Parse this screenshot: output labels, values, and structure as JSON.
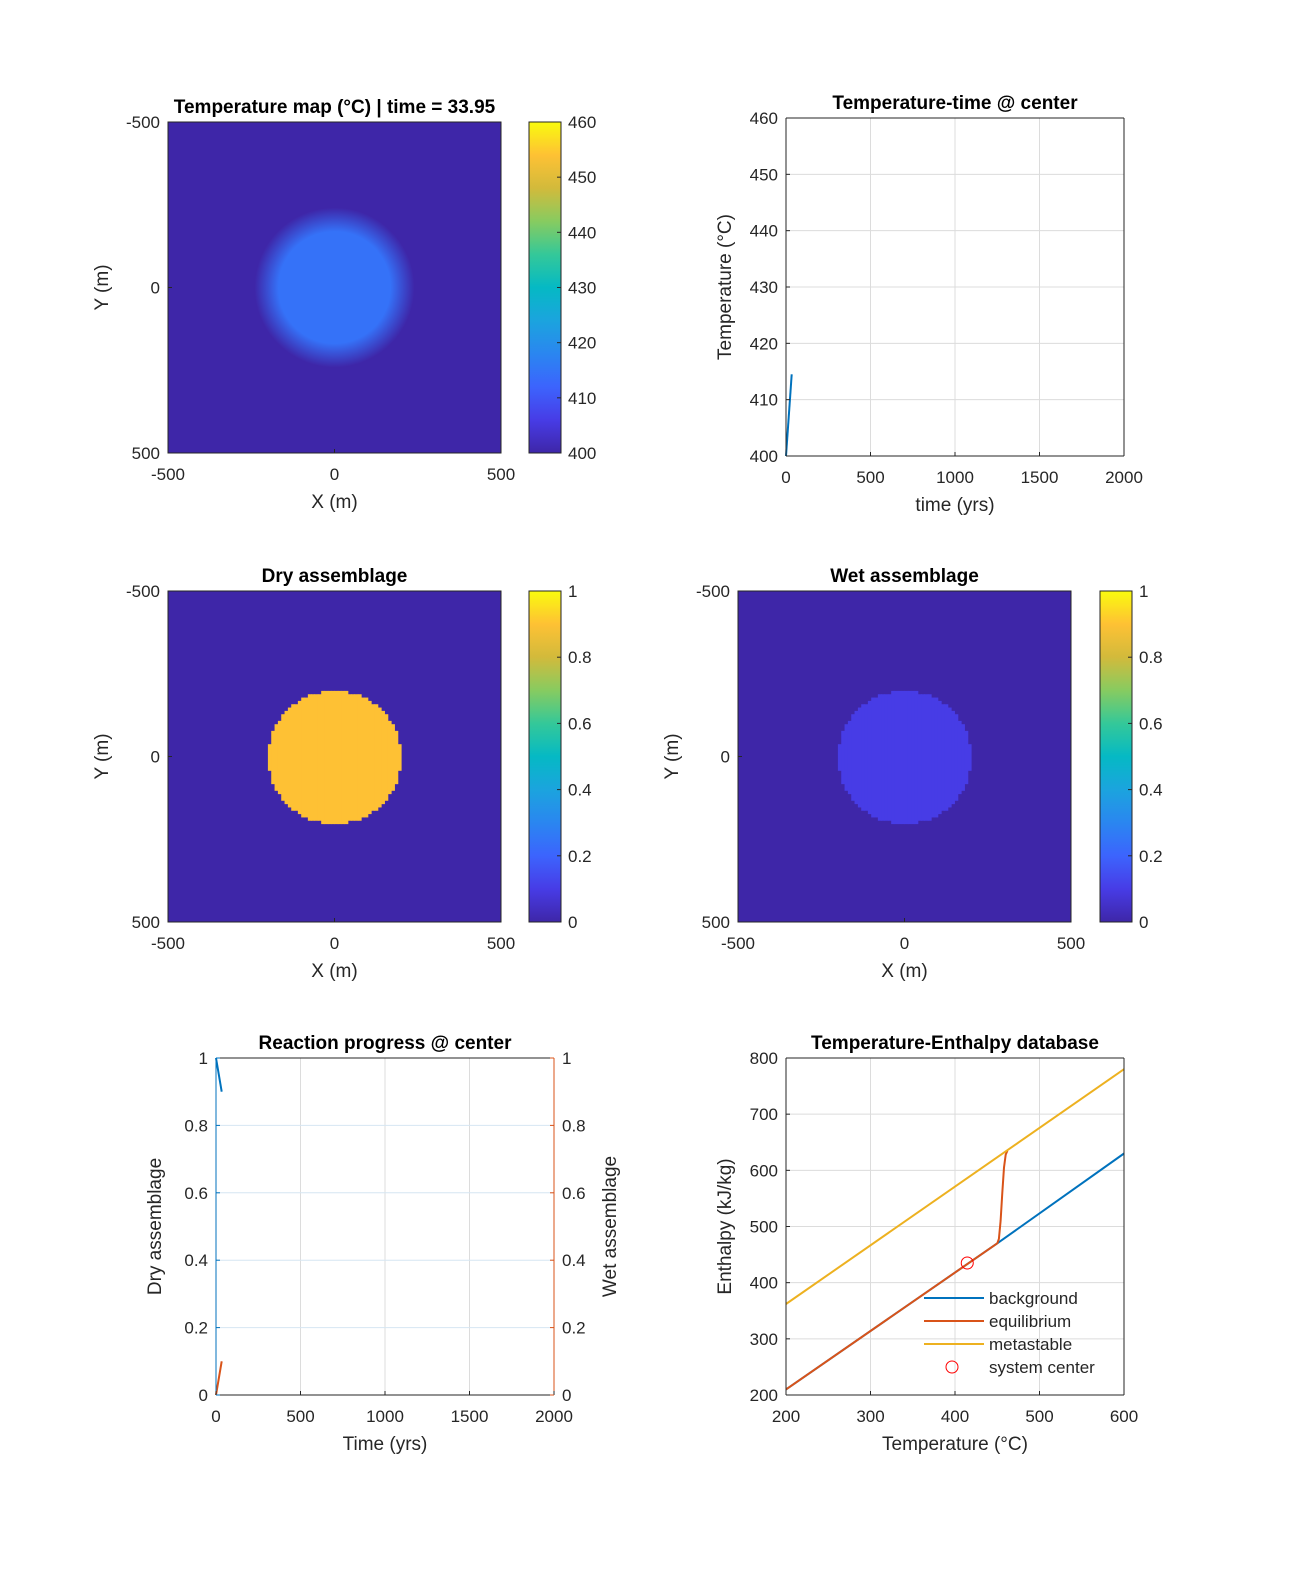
{
  "chart_data": [
    {
      "id": "temp_map",
      "type": "heatmap",
      "title": "Temperature map (°C) | time = 33.95",
      "xlabel": "X (m)",
      "ylabel": "Y (m)",
      "xlim": [
        -500,
        500
      ],
      "ylim": [
        -500,
        500
      ],
      "y_reversed": true,
      "xticks": [
        "-500",
        "0",
        "500"
      ],
      "yticks": [
        "-500",
        "0",
        "500"
      ],
      "colorbar": {
        "clim": [
          400,
          460
        ],
        "ticks": [
          "400",
          "410",
          "420",
          "430",
          "440",
          "450",
          "460"
        ],
        "colormap": "parula"
      },
      "field": {
        "background": 400,
        "center_value": 414.5,
        "radius_m": 200,
        "edge": "smooth"
      }
    },
    {
      "id": "temp_time",
      "type": "line",
      "title": "Temperature-time @ center",
      "xlabel": "time (yrs)",
      "ylabel": "Temperature (°C)",
      "xlim": [
        0,
        2000
      ],
      "ylim": [
        400,
        460
      ],
      "xticks": [
        "0",
        "500",
        "1000",
        "1500",
        "2000"
      ],
      "yticks": [
        "400",
        "410",
        "420",
        "430",
        "440",
        "450",
        "460"
      ],
      "grid": true,
      "series": [
        {
          "name": "center temperature",
          "color": "#0072bd",
          "x": [
            0,
            33.95
          ],
          "y": [
            400,
            414.5
          ]
        }
      ]
    },
    {
      "id": "dry_map",
      "type": "heatmap",
      "title": "Dry assemblage",
      "xlabel": "X (m)",
      "ylabel": "Y (m)",
      "xlim": [
        -500,
        500
      ],
      "ylim": [
        -500,
        500
      ],
      "y_reversed": true,
      "xticks": [
        "-500",
        "0",
        "500"
      ],
      "yticks": [
        "-500",
        "0",
        "500"
      ],
      "colorbar": {
        "clim": [
          0,
          1
        ],
        "ticks": [
          "0",
          "0.2",
          "0.4",
          "0.6",
          "0.8",
          "1"
        ],
        "colormap": "parula"
      },
      "field": {
        "background": 0,
        "center_value": 0.9,
        "radius_m": 200,
        "edge": "pixelated"
      }
    },
    {
      "id": "wet_map",
      "type": "heatmap",
      "title": "Wet assemblage",
      "xlabel": "X (m)",
      "ylabel": "Y (m)",
      "xlim": [
        -500,
        500
      ],
      "ylim": [
        -500,
        500
      ],
      "y_reversed": true,
      "xticks": [
        "-500",
        "0",
        "500"
      ],
      "yticks": [
        "-500",
        "0",
        "500"
      ],
      "colorbar": {
        "clim": [
          0,
          1
        ],
        "ticks": [
          "0",
          "0.2",
          "0.4",
          "0.6",
          "0.8",
          "1"
        ],
        "colormap": "parula"
      },
      "field": {
        "background": 0,
        "center_value": 0.1,
        "radius_m": 200,
        "edge": "pixelated"
      }
    },
    {
      "id": "reaction",
      "type": "line",
      "title": "Reaction progress @ center",
      "xlabel": "Time (yrs)",
      "ylabel": "Dry assemblage",
      "ylabel_right": "Wet assemblage",
      "xlim": [
        0,
        2000
      ],
      "ylim": [
        0,
        1
      ],
      "ylim_right": [
        0,
        1
      ],
      "xticks": [
        "0",
        "500",
        "1000",
        "1500",
        "2000"
      ],
      "yticks": [
        "0",
        "0.2",
        "0.4",
        "0.6",
        "0.8",
        "1"
      ],
      "grid": true,
      "left_color": "#0072bd",
      "right_color": "#d95319",
      "series": [
        {
          "name": "Dry assemblage",
          "axis": "left",
          "color": "#0072bd",
          "x": [
            0,
            33.95
          ],
          "y": [
            1,
            0.9
          ]
        },
        {
          "name": "Wet assemblage",
          "axis": "right",
          "color": "#d95319",
          "x": [
            0,
            33.95
          ],
          "y": [
            0,
            0.1
          ]
        }
      ]
    },
    {
      "id": "enthalpy",
      "type": "line",
      "title": "Temperature-Enthalpy database",
      "xlabel": "Temperature (°C)",
      "ylabel": "Enthalpy (kJ/kg)",
      "xlim": [
        200,
        600
      ],
      "ylim": [
        200,
        800
      ],
      "xticks": [
        "200",
        "300",
        "400",
        "500",
        "600"
      ],
      "yticks": [
        "200",
        "300",
        "400",
        "500",
        "600",
        "700",
        "800"
      ],
      "grid": true,
      "legend": "bottom-right",
      "series": [
        {
          "name": "background",
          "color": "#0072bd",
          "x": [
            200,
            450,
            600
          ],
          "y": [
            210,
            470,
            630
          ]
        },
        {
          "name": "equilibrium",
          "color": "#d95319",
          "x": [
            200,
            450,
            452,
            454,
            456,
            458,
            460,
            462
          ],
          "y": [
            210,
            470,
            478,
            510,
            560,
            605,
            628,
            635
          ]
        },
        {
          "name": "metastable",
          "color": "#edb120",
          "x": [
            200,
            600
          ],
          "y": [
            362,
            780
          ]
        }
      ],
      "markers": [
        {
          "name": "system center",
          "color": "#ff0000",
          "symbol": "circle",
          "x": 414.5,
          "y": 435
        }
      ]
    }
  ]
}
